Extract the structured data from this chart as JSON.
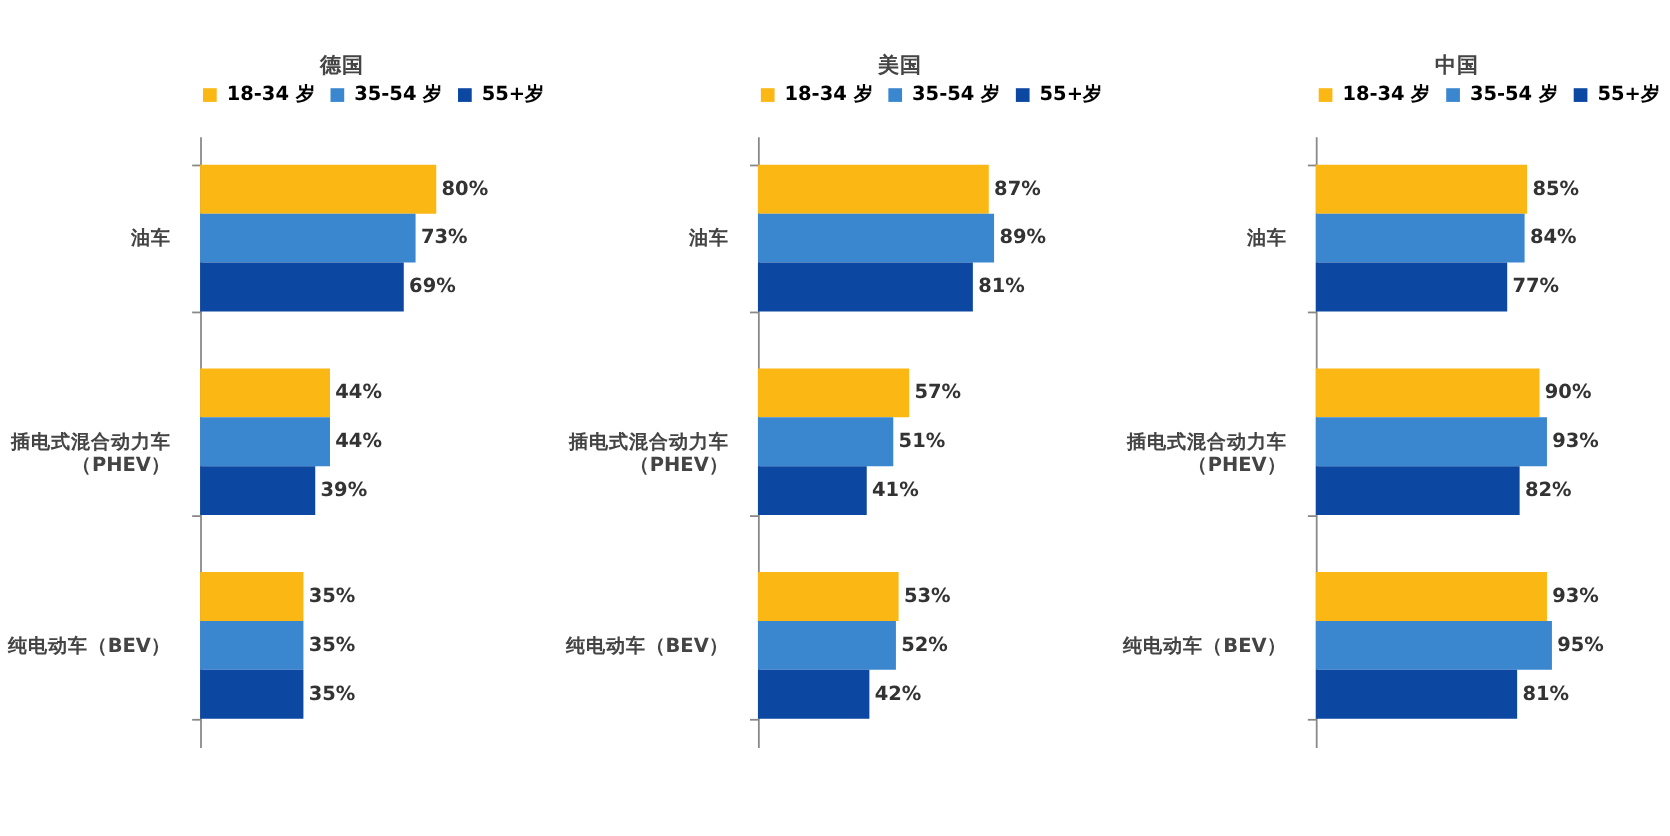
{
  "chart_data": [
    {
      "type": "bar",
      "orientation": "horizontal",
      "title": "德国",
      "legend": "top",
      "grid": false,
      "categories": [
        "油车",
        "插电式混合动力车（PHEV）",
        "纯电动车（BEV）"
      ],
      "series": [
        {
          "name": "18-34 岁",
          "color": "#fbb714",
          "values": [
            80,
            44,
            35
          ],
          "value_labels": [
            "80%",
            "44%",
            "35%"
          ]
        },
        {
          "name": "35-54 岁",
          "color": "#3a87d0",
          "values": [
            73,
            44,
            35
          ],
          "value_labels": [
            "73%",
            "44%",
            "35%"
          ]
        },
        {
          "name": "55+岁",
          "color": "#0c47a1",
          "values": [
            69,
            39,
            35
          ],
          "value_labels": [
            "69%",
            "39%",
            "35%"
          ]
        }
      ]
    },
    {
      "type": "bar",
      "orientation": "horizontal",
      "title": "美国",
      "legend": "top",
      "grid": false,
      "categories": [
        "油车",
        "插电式混合动力车（PHEV）",
        "纯电动车（BEV）"
      ],
      "series": [
        {
          "name": "18-34 岁",
          "color": "#fbb714",
          "values": [
            87,
            57,
            53
          ],
          "value_labels": [
            "87%",
            "57%",
            "53%"
          ]
        },
        {
          "name": "35-54 岁",
          "color": "#3a87d0",
          "values": [
            89,
            51,
            52
          ],
          "value_labels": [
            "89%",
            "51%",
            "52%"
          ]
        },
        {
          "name": "55+岁",
          "color": "#0c47a1",
          "values": [
            81,
            41,
            42
          ],
          "value_labels": [
            "81%",
            "41%",
            "42%"
          ]
        }
      ]
    },
    {
      "type": "bar",
      "orientation": "horizontal",
      "title": "中国",
      "legend": "top",
      "grid": false,
      "categories": [
        "油车",
        "插电式混合动力车（PHEV）",
        "纯电动车（BEV）"
      ],
      "series": [
        {
          "name": "18-34 岁",
          "color": "#fbb714",
          "values": [
            85,
            90,
            93
          ],
          "value_labels": [
            "85%",
            "90%",
            "93%"
          ]
        },
        {
          "name": "35-54 岁",
          "color": "#3a87d0",
          "values": [
            84,
            93,
            95
          ],
          "value_labels": [
            "84%",
            "93%",
            "95%"
          ]
        },
        {
          "name": "55+岁",
          "color": "#0c47a1",
          "values": [
            77,
            82,
            81
          ],
          "value_labels": [
            "77%",
            "82%",
            "81%"
          ]
        }
      ]
    }
  ]
}
